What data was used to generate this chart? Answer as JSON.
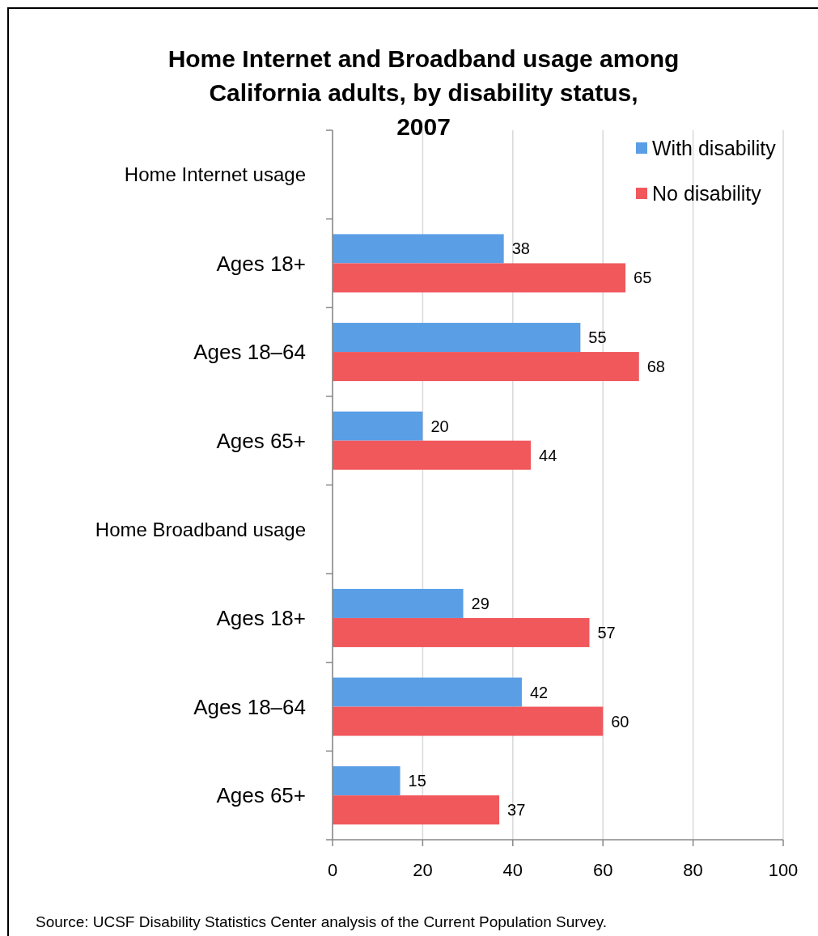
{
  "chart_data": {
    "type": "bar",
    "orientation": "horizontal",
    "title": "Home Internet and Broadband usage among California adults, by disability status, 2007",
    "categories": [
      "Home Internet usage",
      "Ages 18+",
      "Ages 18–64",
      "Ages 65+",
      "Home Broadband usage",
      "Ages 18+",
      "Ages 18–64",
      "Ages 65+"
    ],
    "series": [
      {
        "name": "With disability",
        "color": "#5a9ee6",
        "values": [
          null,
          38,
          55,
          20,
          null,
          29,
          42,
          15
        ]
      },
      {
        "name": "No disability",
        "color": "#f0585c",
        "values": [
          null,
          65,
          68,
          44,
          null,
          57,
          60,
          37
        ]
      }
    ],
    "xlim": [
      0,
      100
    ],
    "xticks": [
      0,
      20,
      40,
      60,
      80,
      100
    ],
    "grid": "x",
    "legend": "top right",
    "data_labels": true,
    "annotations": [
      "Source:  UCSF Disability Statistics Center analysis of the Current Population Survey."
    ]
  }
}
